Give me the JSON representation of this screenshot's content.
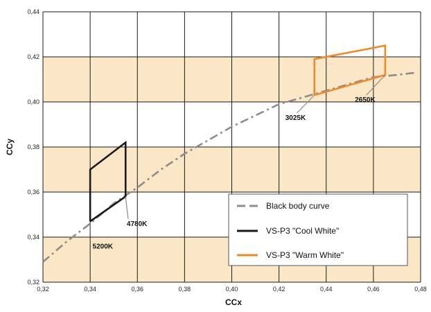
{
  "chart_data": {
    "type": "line",
    "xlabel": "CCx",
    "ylabel": "CCy",
    "xlim": [
      0.32,
      0.48
    ],
    "ylim": [
      0.32,
      0.44
    ],
    "x_ticks": [
      "0,32",
      "0,34",
      "0,36",
      "0,38",
      "0,40",
      "0,42",
      "0,44",
      "0,46",
      "0,48"
    ],
    "y_ticks": [
      "0,32",
      "0,34",
      "0,36",
      "0,38",
      "0,40",
      "0,42",
      "0,44"
    ],
    "x_tick_values": [
      0.32,
      0.34,
      0.36,
      0.38,
      0.4,
      0.42,
      0.44,
      0.46,
      0.48
    ],
    "y_tick_values": [
      0.32,
      0.34,
      0.36,
      0.38,
      0.4,
      0.42,
      0.44
    ],
    "grid": true,
    "band_color": "#fbe7c6",
    "bands": [
      [
        0.32,
        0.34
      ],
      [
        0.36,
        0.38
      ],
      [
        0.4,
        0.42
      ]
    ],
    "legend_position": "bottom-right",
    "series": [
      {
        "name": "Black body curve",
        "color": "#8c8c8c",
        "style": "dash-dot",
        "x": [
          0.32,
          0.33,
          0.34,
          0.35,
          0.36,
          0.37,
          0.38,
          0.39,
          0.4,
          0.41,
          0.42,
          0.43,
          0.44,
          0.45,
          0.46,
          0.47,
          0.478
        ],
        "y": [
          0.329,
          0.338,
          0.346,
          0.355,
          0.362,
          0.37,
          0.377,
          0.383,
          0.389,
          0.394,
          0.399,
          0.402,
          0.405,
          0.408,
          0.411,
          0.412,
          0.413
        ]
      },
      {
        "name": "VS-P3 \"Cool White\"",
        "color": "#1a1a1a",
        "style": "solid",
        "x": [
          0.34,
          0.355,
          0.355,
          0.34,
          0.34
        ],
        "y": [
          0.347,
          0.358,
          0.382,
          0.37,
          0.347
        ]
      },
      {
        "name": "VS-P3 \"Warm White\"",
        "color": "#f0892b",
        "style": "solid",
        "x": [
          0.435,
          0.465,
          0.465,
          0.435,
          0.435
        ],
        "y": [
          0.403,
          0.412,
          0.425,
          0.419,
          0.403
        ]
      }
    ],
    "annotations": [
      {
        "text": "5200K",
        "point": [
          0.34,
          0.347
        ],
        "label_at": [
          0.341,
          0.335
        ],
        "leader": false
      },
      {
        "text": "4780K",
        "point": [
          0.355,
          0.358
        ],
        "label_at": [
          0.3555,
          0.345
        ],
        "leader": true
      },
      {
        "text": "3025K",
        "point": [
          0.435,
          0.403
        ],
        "label_at": [
          0.427,
          0.392
        ],
        "leader": true
      },
      {
        "text": "2650K",
        "point": [
          0.465,
          0.412
        ],
        "label_at": [
          0.4565,
          0.4
        ],
        "leader": true
      }
    ]
  }
}
